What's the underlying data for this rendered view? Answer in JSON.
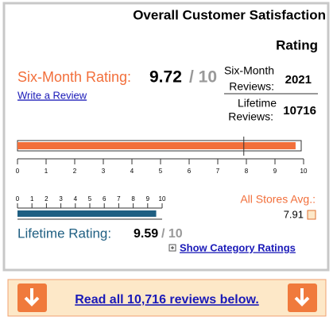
{
  "title_lines": [
    "Overall Customer Satisfaction",
    "Rating"
  ],
  "six_month": {
    "label": "Six-Month Rating:",
    "value": 9.72,
    "max": "/ 10",
    "color": "#f26f3b"
  },
  "write_review": "Write a Review",
  "six_month_reviews": {
    "label_lines": [
      "Six-Month",
      "Reviews:"
    ],
    "value": 2021
  },
  "lifetime_reviews": {
    "label_lines": [
      "Lifetime",
      "Reviews:"
    ],
    "value": 10716
  },
  "scale_ticks": [
    0,
    1,
    2,
    3,
    4,
    5,
    6,
    7,
    8,
    9,
    10
  ],
  "all_stores": {
    "label": "All Stores Avg.:",
    "value": 7.91
  },
  "lifetime": {
    "label": "Lifetime Rating:",
    "value": 9.59,
    "max": "/ 10",
    "color": "#1f5f82"
  },
  "show_category": "Show Category Ratings",
  "footer_link": "Read all 10,716 reviews below."
}
